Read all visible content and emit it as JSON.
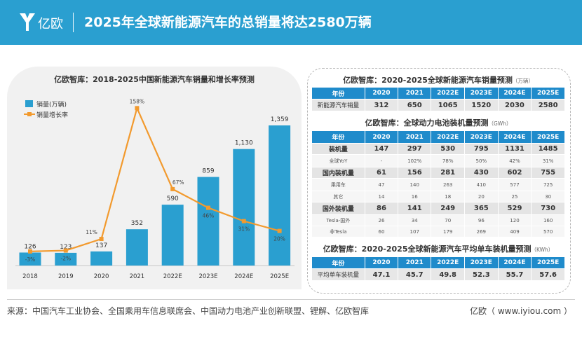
{
  "header": {
    "logo_text": "亿欧",
    "title": "2025年全球新能源汽车的总销量将达2580万辆",
    "bg_color": "#2a9fd0"
  },
  "chart_data": {
    "type": "bar",
    "title": "亿欧智库：2018-2025中国新能源汽车销量和增长率预测",
    "categories": [
      "2018",
      "2019",
      "2020",
      "2021",
      "2022E",
      "2023E",
      "2024E",
      "2025E"
    ],
    "series": [
      {
        "name": "销量(万辆)",
        "type": "bar",
        "color": "#2a9fd0",
        "values": [
          126,
          123,
          137,
          352,
          590,
          859,
          1130,
          1359
        ],
        "labels": [
          "126",
          "123",
          "137",
          "352",
          "590",
          "859",
          "1,130",
          "1,359"
        ]
      },
      {
        "name": "销量增长率",
        "type": "line",
        "color": "#f29a2e",
        "values": [
          -3,
          -2,
          11,
          158,
          67,
          46,
          31,
          20
        ],
        "labels": [
          "-3%",
          "-2%",
          "11%",
          "158%",
          "67%",
          "46%",
          "31%",
          "20%"
        ]
      }
    ],
    "legend_position": "top-left",
    "grid": false
  },
  "tables": [
    {
      "title": "亿欧智库：2020-2025全球新能源汽车销量预测",
      "unit": "（万辆）",
      "header": [
        "年份",
        "2020",
        "2021",
        "2022E",
        "2023E",
        "2024E",
        "2025E"
      ],
      "rows": [
        {
          "label": "新能源汽车销量",
          "values": [
            "312",
            "650",
            "1065",
            "1520",
            "2030",
            "2580"
          ]
        }
      ]
    },
    {
      "title": "亿欧智库：全球动力电池装机量预测",
      "unit": "（GWh）",
      "header": [
        "年份",
        "2020",
        "2021",
        "2022E",
        "2023E",
        "2024E",
        "2025E"
      ],
      "rows": [
        {
          "label": "装机量",
          "values": [
            "147",
            "297",
            "530",
            "795",
            "1131",
            "1485"
          ]
        },
        {
          "label": "全球YoY",
          "values": [
            "-",
            "102%",
            "78%",
            "50%",
            "42%",
            "31%"
          ]
        },
        {
          "label": "国内装机量",
          "values": [
            "61",
            "156",
            "281",
            "430",
            "602",
            "755"
          ]
        },
        {
          "label": "乘用车",
          "values": [
            "47",
            "140",
            "263",
            "410",
            "577",
            "725"
          ]
        },
        {
          "label": "其它",
          "values": [
            "14",
            "16",
            "18",
            "20",
            "25",
            "30"
          ]
        },
        {
          "label": "国外装机量",
          "values": [
            "86",
            "141",
            "249",
            "365",
            "529",
            "730"
          ]
        },
        {
          "label": "Tesla-国外",
          "values": [
            "26",
            "34",
            "70",
            "96",
            "120",
            "160"
          ]
        },
        {
          "label": "非Tesla",
          "values": [
            "60",
            "107",
            "179",
            "269",
            "409",
            "570"
          ]
        }
      ]
    },
    {
      "title": "亿欧智库：2020-2025全球新能源汽车平均单车装机量预测",
      "unit": "（KWh）",
      "header": [
        "年份",
        "2020",
        "2021",
        "2022E",
        "2023E",
        "2024E",
        "2025E"
      ],
      "rows": [
        {
          "label": "平均单车装机量",
          "values": [
            "47.1",
            "45.7",
            "49.8",
            "52.3",
            "55.7",
            "57.6"
          ]
        }
      ]
    }
  ],
  "footer": {
    "source": "来源：中国汽车工业协会、全国乘用车信息联席会、中国动力电池产业创新联盟、锂解、亿欧智库",
    "credit": "亿欧（ www.iyiou.com ）"
  }
}
